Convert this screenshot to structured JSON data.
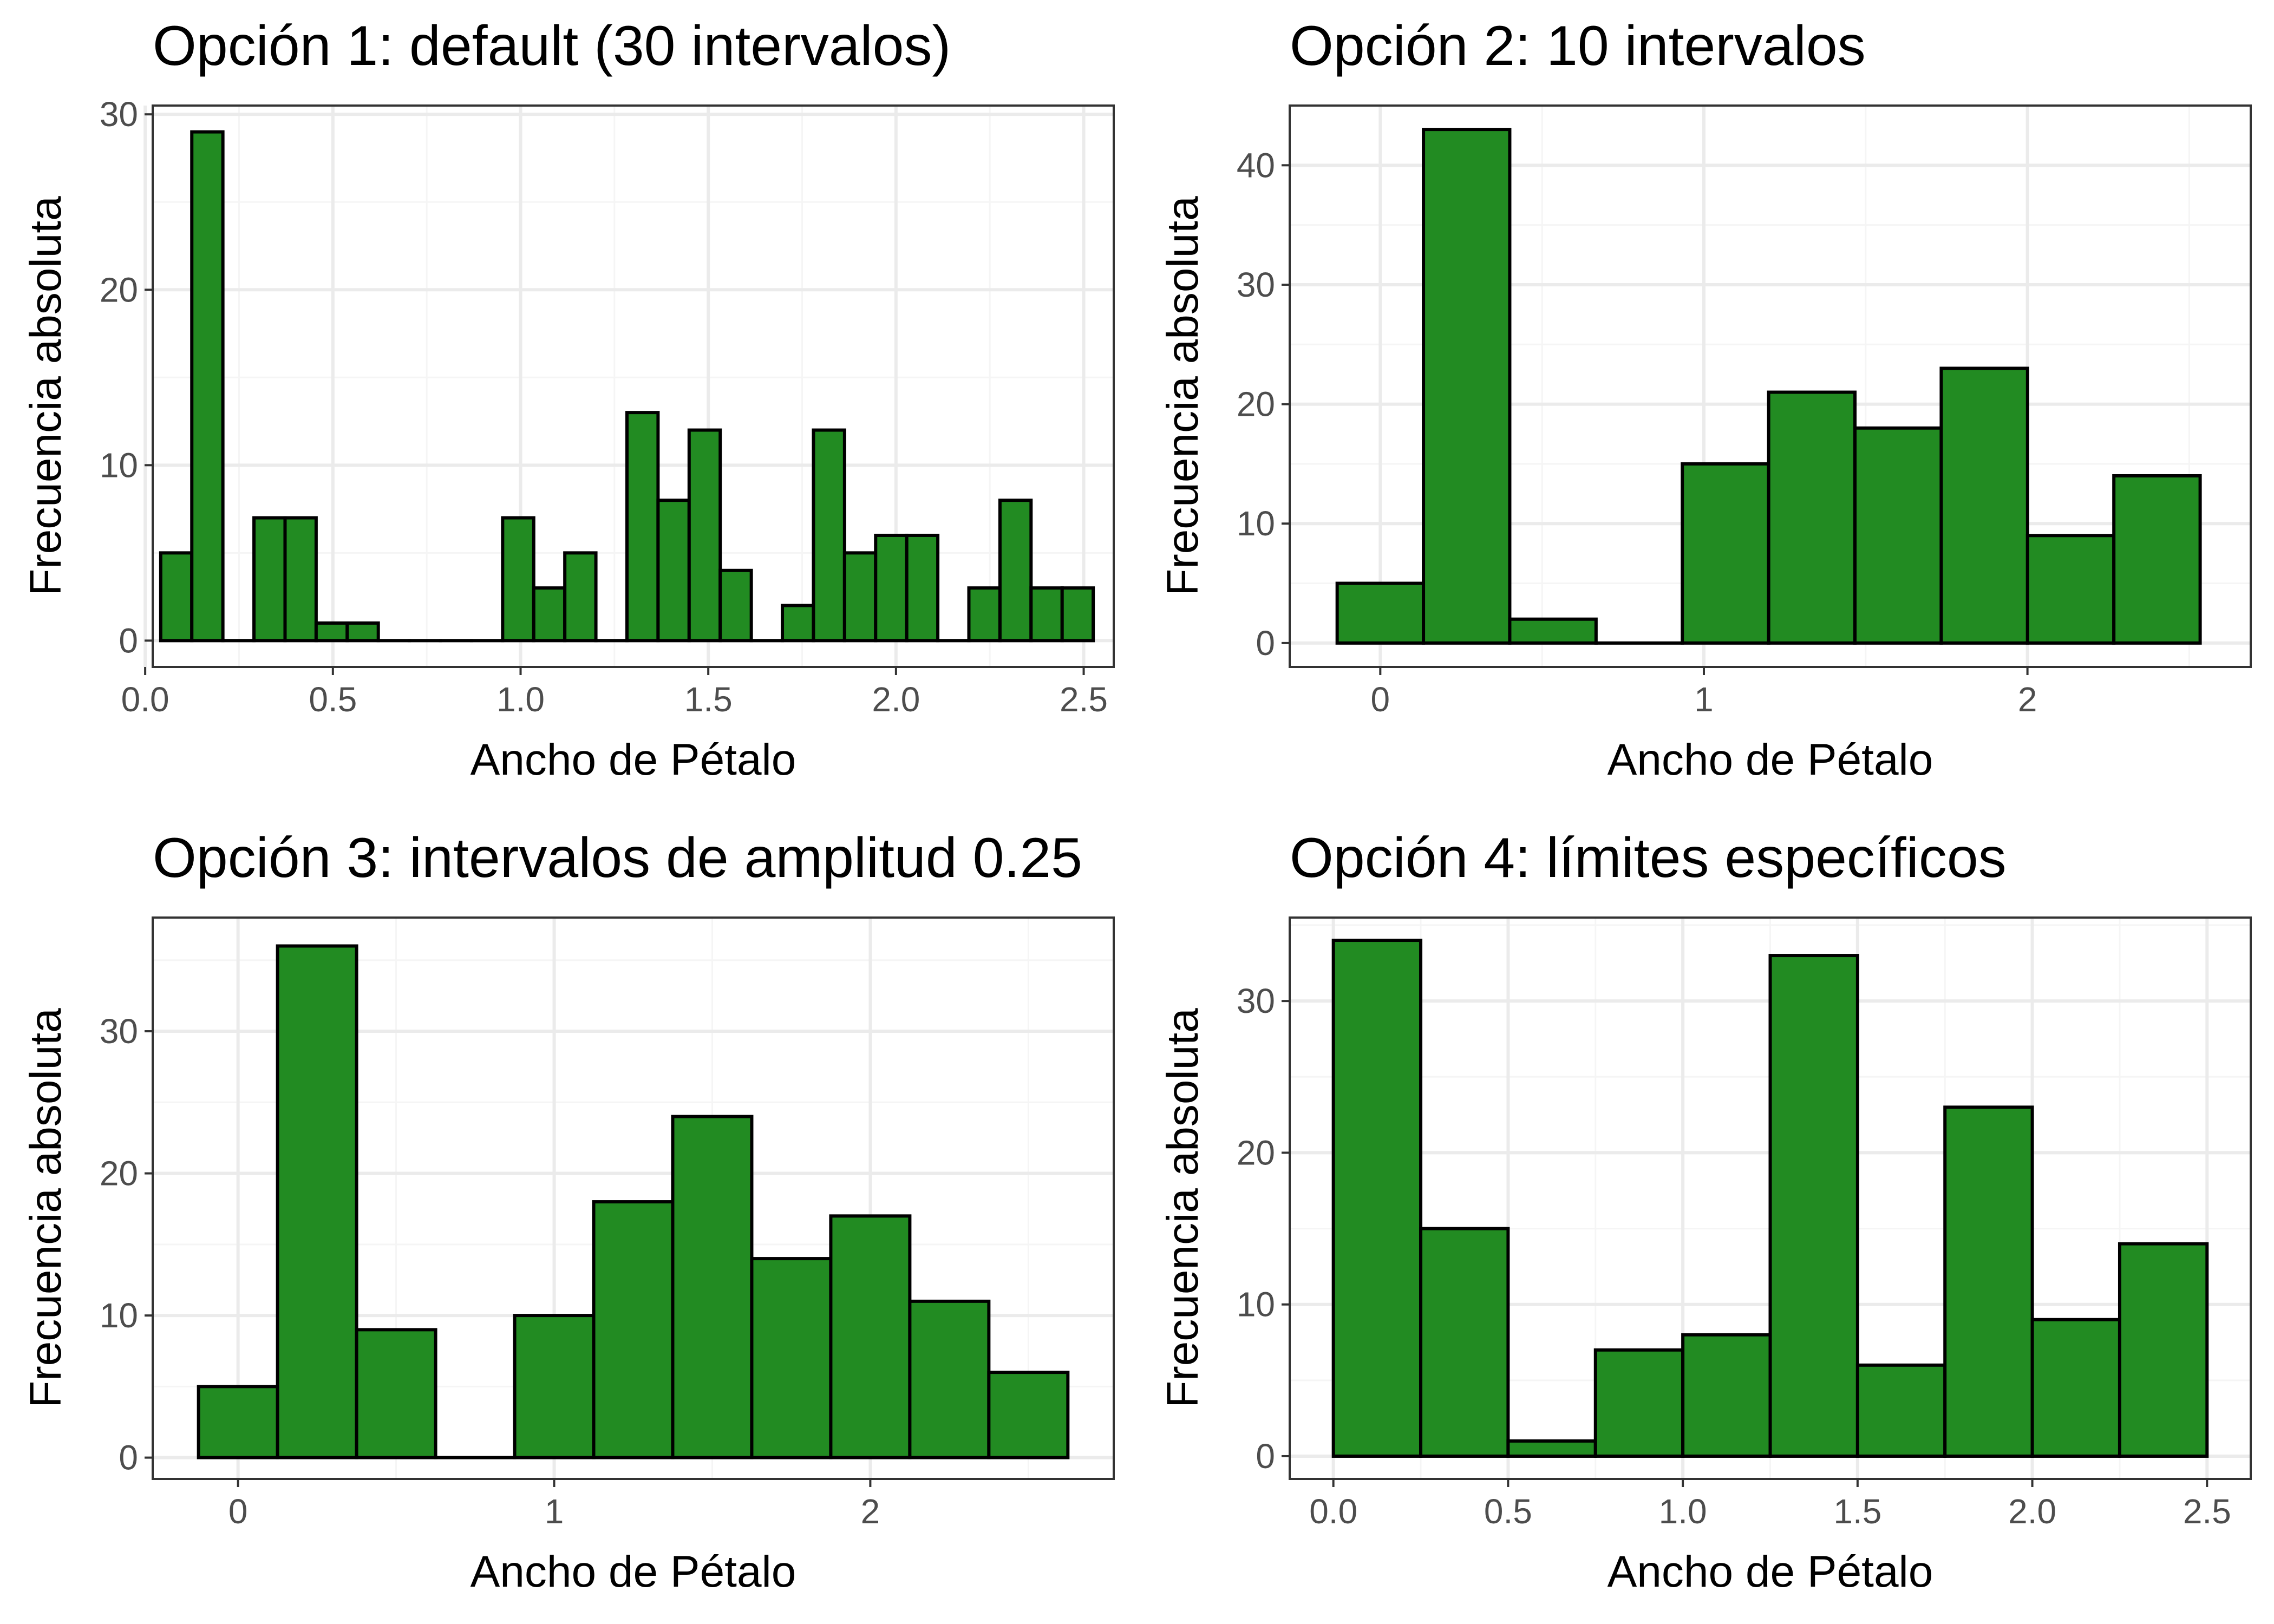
{
  "colors": {
    "bar_fill": "#228B22",
    "bar_stroke": "#000000",
    "panel_border": "#333333",
    "grid_major": "#ebebeb",
    "grid_minor": "#f5f5f5",
    "tick_text": "#4d4d4d",
    "background": "#ffffff"
  },
  "chart_data": [
    {
      "type": "bar",
      "title": "Opción 1: default (30 intervalos)",
      "xlabel": "Ancho de Pétalo",
      "ylabel": "Frecuencia absoluta",
      "xlim": [
        0.02,
        2.58
      ],
      "ylim": [
        -1.5,
        30.5
      ],
      "xticks": [
        0.0,
        0.5,
        1.0,
        1.5,
        2.0,
        2.5
      ],
      "xtick_labels": [
        "0.0",
        "0.5",
        "1.0",
        "1.5",
        "2.0",
        "2.5"
      ],
      "yticks": [
        0,
        10,
        20,
        30
      ],
      "ytick_labels": [
        "0",
        "10",
        "20",
        "30"
      ],
      "bin_start": 0.0414,
      "bin_width": 0.0828,
      "values": [
        5,
        29,
        0,
        7,
        7,
        1,
        1,
        0,
        0,
        0,
        0,
        7,
        3,
        5,
        0,
        13,
        8,
        12,
        4,
        0,
        2,
        12,
        5,
        6,
        6,
        0,
        3,
        8,
        3,
        3
      ],
      "grid": true
    },
    {
      "type": "bar",
      "title": "Opción 2: 10 intervalos",
      "xlabel": "Ancho de Pétalo",
      "ylabel": "Frecuencia absoluta",
      "xlim": [
        -0.28,
        2.69
      ],
      "ylim": [
        -2,
        45
      ],
      "xticks": [
        0,
        1,
        2
      ],
      "xtick_labels": [
        "0",
        "1",
        "2"
      ],
      "yticks": [
        0,
        10,
        20,
        30,
        40
      ],
      "ytick_labels": [
        "0",
        "10",
        "20",
        "30",
        "40"
      ],
      "bin_start": -0.1333,
      "bin_width": 0.2667,
      "values": [
        5,
        43,
        2,
        0,
        15,
        21,
        18,
        23,
        9,
        14
      ],
      "grid": true
    },
    {
      "type": "bar",
      "title": "Opción 3: intervalos de amplitud 0.25",
      "xlabel": "Ancho de Pétalo",
      "ylabel": "Frecuencia absoluta",
      "xlim": [
        -0.27,
        2.77
      ],
      "ylim": [
        -1.5,
        38
      ],
      "xticks": [
        0,
        1,
        2
      ],
      "xtick_labels": [
        "0",
        "1",
        "2"
      ],
      "yticks": [
        0,
        10,
        20,
        30
      ],
      "ytick_labels": [
        "0",
        "10",
        "20",
        "30"
      ],
      "bin_start": -0.125,
      "bin_width": 0.25,
      "values": [
        5,
        36,
        9,
        0,
        10,
        18,
        24,
        14,
        17,
        11,
        6
      ],
      "grid": true
    },
    {
      "type": "bar",
      "title": "Opción 4: límites específicos",
      "xlabel": "Ancho de Pétalo",
      "ylabel": "Frecuencia absoluta",
      "xlim": [
        -0.125,
        2.625
      ],
      "ylim": [
        -1.5,
        35.5
      ],
      "xticks": [
        0.0,
        0.5,
        1.0,
        1.5,
        2.0,
        2.5
      ],
      "xtick_labels": [
        "0.0",
        "0.5",
        "1.0",
        "1.5",
        "2.0",
        "2.5"
      ],
      "yticks": [
        0,
        10,
        20,
        30
      ],
      "ytick_labels": [
        "0",
        "10",
        "20",
        "30"
      ],
      "bin_start": 0.0,
      "bin_width": 0.25,
      "values": [
        34,
        15,
        1,
        7,
        8,
        33,
        6,
        23,
        9,
        14
      ],
      "grid": true
    }
  ]
}
